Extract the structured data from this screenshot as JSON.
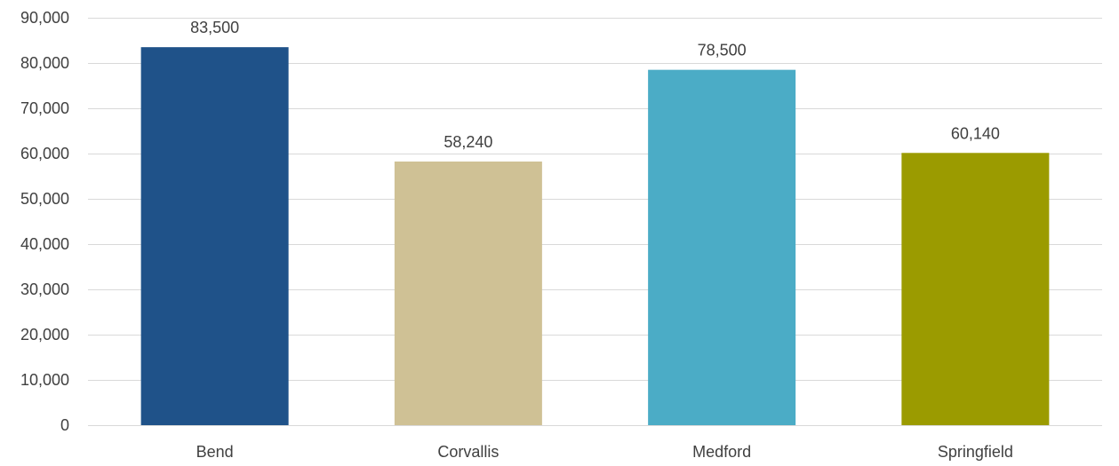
{
  "chart_data": {
    "type": "bar",
    "categories": [
      "Bend",
      "Corvallis",
      "Medford",
      "Springfield"
    ],
    "values": [
      83500,
      58240,
      78500,
      60140
    ],
    "value_labels": [
      "83,500",
      "58,240",
      "78,500",
      "60,140"
    ],
    "bar_colors": [
      "#1f5289",
      "#cfc195",
      "#4bacc6",
      "#9b9b00"
    ],
    "title": "",
    "xlabel": "",
    "ylabel": "",
    "ylim": [
      0,
      90000
    ],
    "yticks": [
      0,
      10000,
      20000,
      30000,
      40000,
      50000,
      60000,
      70000,
      80000,
      90000
    ],
    "ytick_labels": [
      "0",
      "10,000",
      "20,000",
      "30,000",
      "40,000",
      "50,000",
      "60,000",
      "70,000",
      "80,000",
      "90,000"
    ],
    "grid": true,
    "legend": "none",
    "colors": {
      "gridline": "#d9d9d9",
      "text": "#404040"
    }
  }
}
